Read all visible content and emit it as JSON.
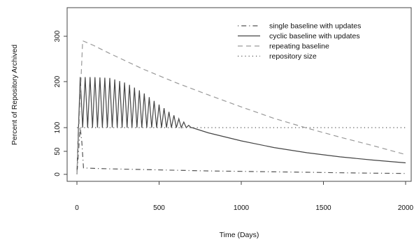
{
  "chart_data": {
    "type": "line",
    "title": "",
    "xlabel": "Time (Days)",
    "ylabel": "Percent of Repository Archived",
    "xlim": [
      -60,
      2030
    ],
    "ylim": [
      -10,
      360
    ],
    "x_ticks": [
      0,
      500,
      1000,
      1500,
      2000
    ],
    "x_tick_labels": [
      "0",
      "500",
      "1000",
      "1500",
      "2000"
    ],
    "y_ticks": [
      0,
      50,
      100,
      200,
      300
    ],
    "y_tick_labels": [
      "0",
      "50",
      "100",
      "200",
      "300"
    ],
    "grid": false,
    "legend_position": "top-right",
    "series": [
      {
        "name": "single baseline with updates",
        "style": "dotdash",
        "color": "#555555",
        "x": [
          0,
          20,
          30,
          40,
          100,
          200,
          400,
          600,
          800,
          1000,
          1200,
          1400,
          1600,
          1800,
          2000
        ],
        "y": [
          0,
          100,
          70,
          14,
          13,
          12,
          10.5,
          9,
          7.5,
          6.5,
          5.5,
          4.5,
          3.5,
          2.5,
          2
        ]
      },
      {
        "name": "cyclic baseline with updates",
        "style": "solid",
        "color": "#444444",
        "cycle_period_days": 30,
        "cycle_start_day": 20,
        "cycle_end_day": 680,
        "cycle_low": 100,
        "x": [
          0,
          20,
          40,
          100,
          200,
          300,
          400,
          500,
          600,
          680,
          700,
          800,
          1000,
          1200,
          1400,
          1600,
          1800,
          2000
        ],
        "y": [
          0,
          210,
          210,
          210,
          208,
          197,
          177,
          150,
          124,
          105,
          100,
          89,
          72,
          58,
          47,
          38,
          31,
          25
        ]
      },
      {
        "name": "repeating baseline",
        "style": "dashed",
        "color": "#999999",
        "x": [
          0,
          35,
          100,
          200,
          400,
          600,
          800,
          1000,
          1200,
          1400,
          1600,
          1800,
          2000
        ],
        "y": [
          0,
          290,
          280,
          262,
          228,
          198,
          171,
          145,
          120,
          99,
          80,
          62,
          43
        ]
      },
      {
        "name": "repository size",
        "style": "dotted",
        "color": "#555555",
        "x": [
          0,
          2000
        ],
        "y": [
          100,
          100
        ]
      }
    ]
  }
}
